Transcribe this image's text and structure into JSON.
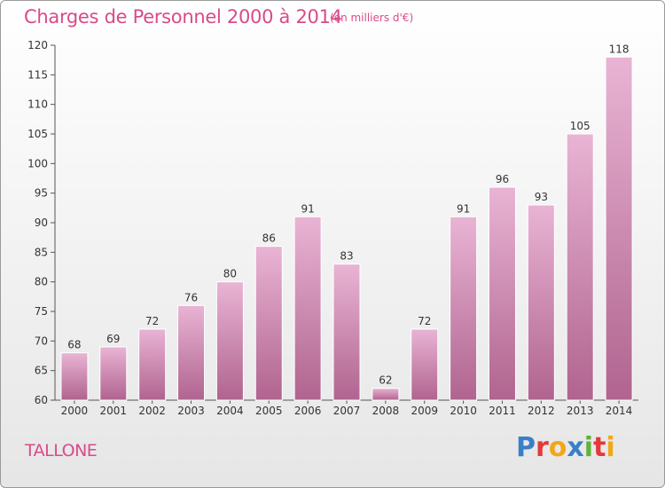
{
  "header": {
    "title": "Charges de Personnel 2000 à 2014",
    "subtitle": "(en milliers d'€)"
  },
  "footer": {
    "commune": "TALLONE",
    "logo_text": "Proxiti"
  },
  "colors": {
    "accent": "#d94a8a",
    "bar_top": "#e9b4d4",
    "bar_bottom": "#b0648f",
    "logo_letters": [
      "#3a7fc8",
      "#e23a3a",
      "#f2a71b",
      "#3a7fc8",
      "#5fb23d",
      "#e23a3a",
      "#f2a71b"
    ]
  },
  "chart_data": {
    "type": "bar",
    "title": "Charges de Personnel 2000 à 2014",
    "subtitle": "(en milliers d'€)",
    "categories": [
      "2000",
      "2001",
      "2002",
      "2003",
      "2004",
      "2005",
      "2006",
      "2007",
      "2008",
      "2009",
      "2010",
      "2011",
      "2012",
      "2013",
      "2014"
    ],
    "values": [
      68,
      69,
      72,
      76,
      80,
      86,
      91,
      83,
      62,
      72,
      91,
      96,
      93,
      105,
      118
    ],
    "data_labels": [
      "68",
      "69",
      "72",
      "76",
      "80",
      "86",
      "91",
      "83",
      "62",
      "72",
      "91",
      "96",
      "93",
      "105",
      "118"
    ],
    "ylim": [
      60,
      120
    ],
    "yticks": [
      60,
      65,
      70,
      75,
      80,
      85,
      90,
      95,
      100,
      105,
      110,
      115,
      120
    ],
    "xlabel": "",
    "ylabel": "",
    "grid": false,
    "legend": "none"
  }
}
